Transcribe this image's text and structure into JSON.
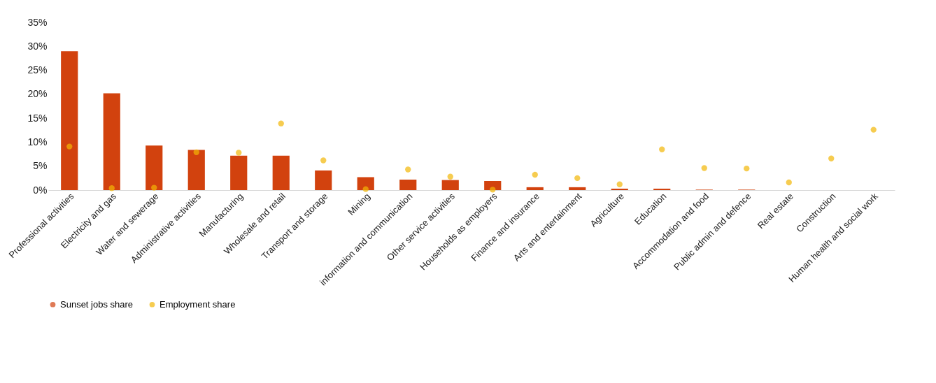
{
  "chart_data": {
    "type": "bar",
    "categories": [
      "Professional activities",
      "Electricity and gas",
      "Water and sewerage",
      "Administrative activities",
      "Manufacturing",
      "Wholesale and retail",
      "Transport and storage",
      "Mining",
      "information and communication",
      "Other service activities",
      "Households as employers",
      "Finance and insurance",
      "Arts and entertainment",
      "Agriculture",
      "Education",
      "Accommodation and food",
      "Public admin and defence",
      "Real estate",
      "Construction",
      "Human health and social work"
    ],
    "series": [
      {
        "name": "Sunset jobs share",
        "color": "#d2420e",
        "values": [
          29,
          20.2,
          9.3,
          8.4,
          7.2,
          7.2,
          4.1,
          2.7,
          2.2,
          2.1,
          1.9,
          0.6,
          0.6,
          0.3,
          0.3,
          0.1,
          0.1,
          0,
          0,
          0
        ]
      },
      {
        "name": "Employment share",
        "type": "scatter",
        "color": "#f2b705",
        "values": [
          9.1,
          0.4,
          0.5,
          7.9,
          7.8,
          13.9,
          6.2,
          0.2,
          4.3,
          2.8,
          0.1,
          3.2,
          2.5,
          1.2,
          8.5,
          4.6,
          4.5,
          1.6,
          6.6,
          12.6
        ]
      }
    ],
    "ylim": [
      0,
      35
    ],
    "yticks": [
      {
        "value": 0,
        "label": "0%"
      },
      {
        "value": 5,
        "label": "5%"
      },
      {
        "value": 10,
        "label": "10%"
      },
      {
        "value": 15,
        "label": "15%"
      },
      {
        "value": 20,
        "label": "20%"
      },
      {
        "value": 25,
        "label": "25%"
      },
      {
        "value": 30,
        "label": "30%"
      },
      {
        "value": 35,
        "label": "35%"
      }
    ],
    "grid": false,
    "legend": "bottom",
    "marker": "circle"
  }
}
